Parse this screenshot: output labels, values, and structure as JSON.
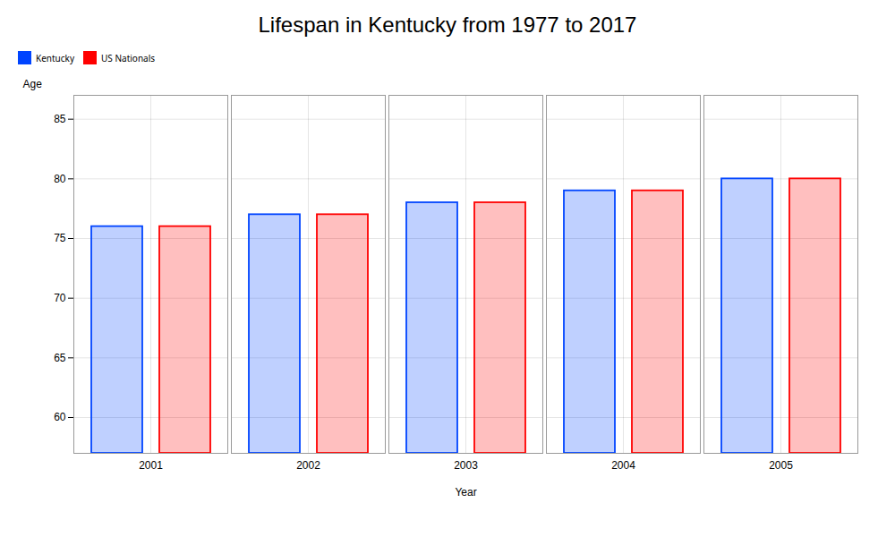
{
  "chart_data": {
    "type": "bar",
    "title": "Lifespan in Kentucky from 1977 to 2017",
    "xlabel": "Year",
    "ylabel": "Age",
    "categories": [
      "2001",
      "2002",
      "2003",
      "2004",
      "2005"
    ],
    "series": [
      {
        "name": "Kentucky",
        "color": "#0044ff",
        "values": [
          76,
          77,
          78,
          79,
          80
        ]
      },
      {
        "name": "US Nationals",
        "color": "#ff0000",
        "values": [
          76,
          77,
          78,
          79,
          80
        ]
      }
    ],
    "ylim": [
      57,
      87
    ],
    "yticks": [
      60,
      65,
      70,
      75,
      80,
      85
    ],
    "grid": true,
    "legend": "top"
  }
}
